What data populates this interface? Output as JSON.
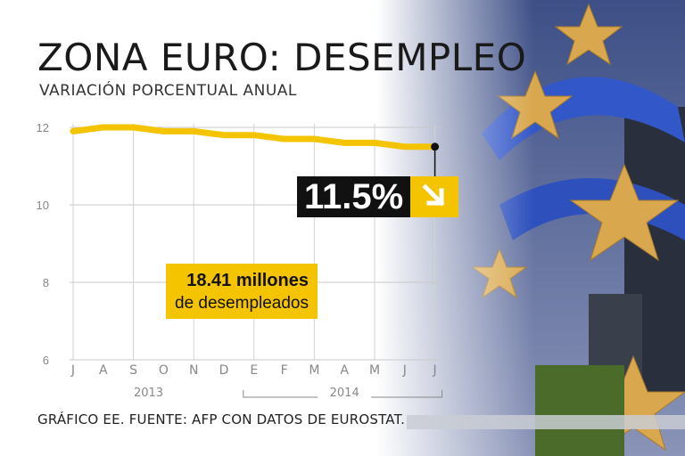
{
  "header": {
    "title": "ZONA EURO: DESEMPLEO",
    "subtitle": "VARIACIÓN PORCENTUAL ANUAL"
  },
  "callout": {
    "value": "11.5%",
    "arrow_icon": "arrow-down-right-icon"
  },
  "info_box": {
    "line1": "18.41 millones",
    "line2": "de desempleados"
  },
  "footer": {
    "text": "GRÁFICO EE. FUENTE: AFP CON DATOS DE EUROSTAT."
  },
  "colors": {
    "line": "#f5c400",
    "callout_bg": "#111111",
    "accent": "#f5c400"
  },
  "chart_data": {
    "type": "line",
    "categories": [
      "J",
      "A",
      "S",
      "O",
      "N",
      "D",
      "E",
      "F",
      "M",
      "A",
      "M",
      "J",
      "J"
    ],
    "years": [
      {
        "label": "2013",
        "from": 0,
        "to": 5
      },
      {
        "label": "2014",
        "from": 6,
        "to": 12
      }
    ],
    "series": [
      {
        "values": [
          11.9,
          12.0,
          12.0,
          11.9,
          11.9,
          11.8,
          11.8,
          11.7,
          11.7,
          11.6,
          11.6,
          11.5,
          11.5
        ]
      }
    ],
    "yticks": [
      6,
      8,
      10,
      12
    ],
    "ylim": [
      6,
      12
    ],
    "xlabel": "",
    "ylabel": "",
    "grid": true
  }
}
